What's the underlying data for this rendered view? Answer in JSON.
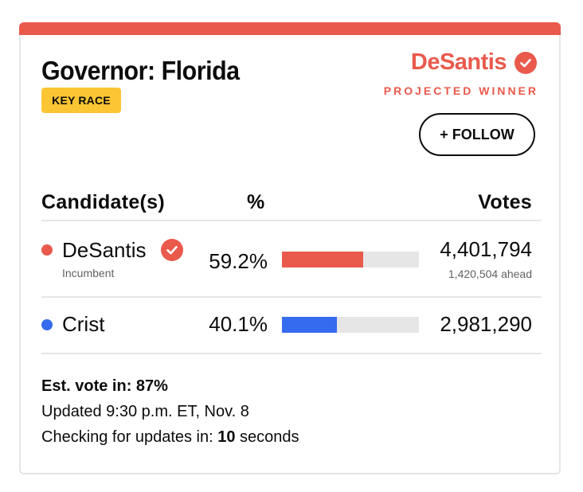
{
  "colors": {
    "accent_red": "#e95a4c",
    "blue": "#346bef",
    "badge_yellow": "#fbc534",
    "bar_track": "#e6e6e6"
  },
  "race": {
    "title": "Governor: Florida",
    "badge": "KEY RACE",
    "winner_name": "DeSantis",
    "winner_label": "PROJECTED WINNER",
    "follow_label": "+ FOLLOW",
    "winner_icon": "check-circle-icon"
  },
  "table": {
    "headers": {
      "candidate": "Candidate(s)",
      "percent": "%",
      "votes": "Votes"
    },
    "rows": [
      {
        "name": "DeSantis",
        "sub": "Incumbent",
        "percent": "59.2%",
        "share": 0.592,
        "votes": "4,401,794",
        "ahead": "1,420,504 ahead",
        "color": "#e95a4c",
        "winner": true
      },
      {
        "name": "Crist",
        "sub": "",
        "percent": "40.1%",
        "share": 0.401,
        "votes": "2,981,290",
        "ahead": "",
        "color": "#346bef",
        "winner": false
      }
    ]
  },
  "footer": {
    "est_vote": "Est. vote in: 87%",
    "updated": "Updated 9:30 p.m. ET, Nov. 8",
    "checking_prefix": "Checking for updates in: ",
    "checking_value": "10",
    "checking_suffix": " seconds"
  }
}
